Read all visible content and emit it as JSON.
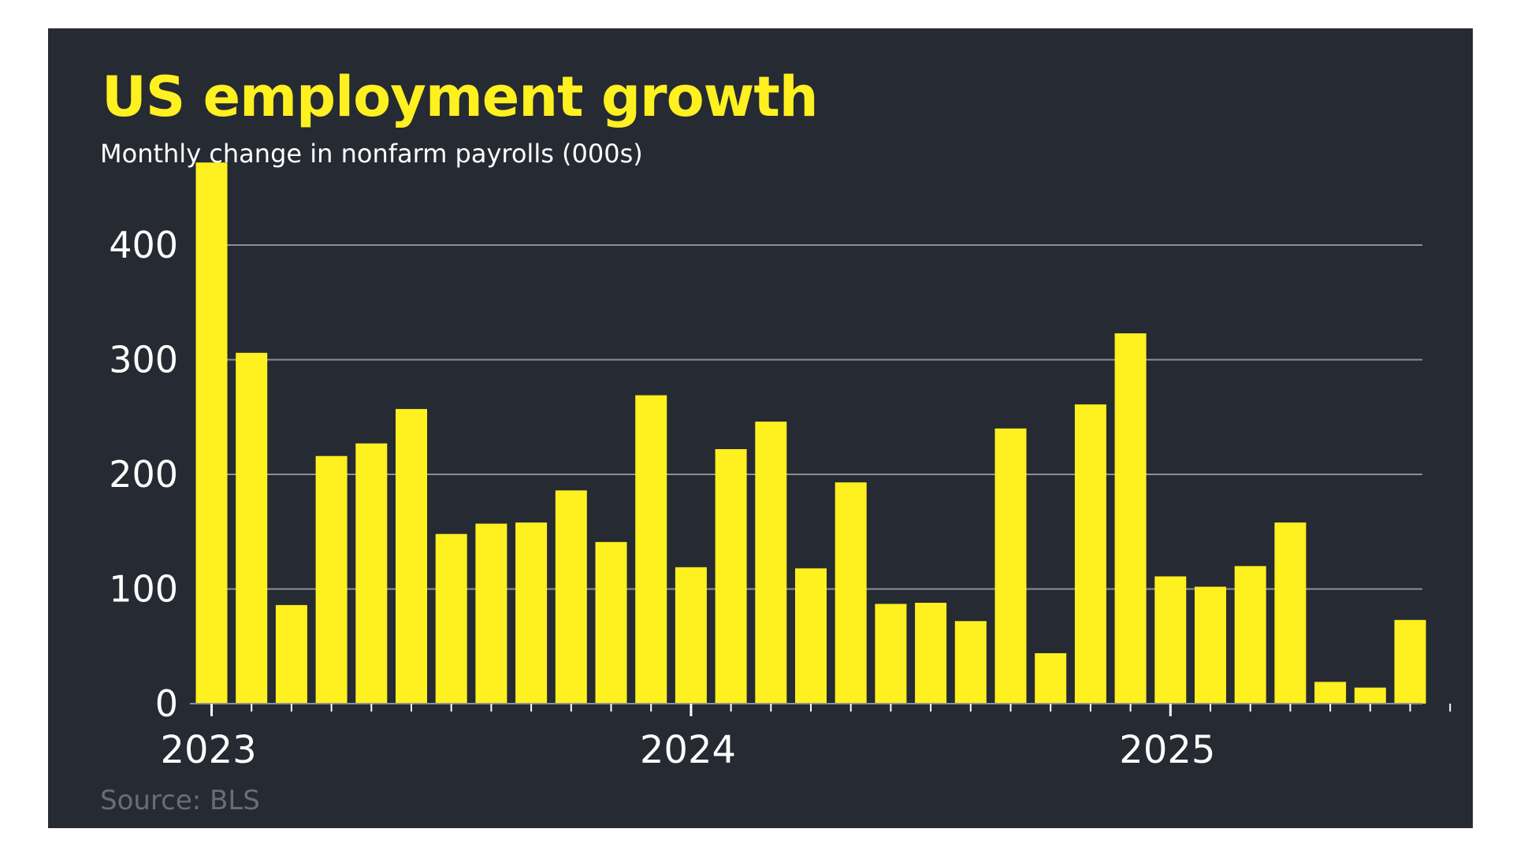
{
  "chart_data": {
    "type": "bar",
    "title": "US employment growth",
    "subtitle": "Monthly change in nonfarm payrolls (000s)",
    "source": "Source: BLS",
    "xlabel": "",
    "ylabel": "",
    "ylim": [
      0,
      440
    ],
    "yticks": [
      "0",
      "100",
      "200",
      "300",
      "400"
    ],
    "xtick_labels": [
      "2023",
      "2024",
      "2025"
    ],
    "grid": true,
    "categories": [
      "Jan 2023",
      "Feb 2023",
      "Mar 2023",
      "Apr 2023",
      "May 2023",
      "Jun 2023",
      "Jul 2023",
      "Aug 2023",
      "Sep 2023",
      "Oct 2023",
      "Nov 2023",
      "Dec 2023",
      "Jan 2024",
      "Feb 2024",
      "Mar 2024",
      "Apr 2024",
      "May 2024",
      "Jun 2024",
      "Jul 2024",
      "Aug 2024",
      "Sep 2024",
      "Oct 2024",
      "Nov 2024",
      "Dec 2024",
      "Jan 2025",
      "Feb 2025",
      "Mar 2025",
      "Apr 2025",
      "May 2025",
      "Jun 2025",
      "Jul 2025",
      "Aug 2025"
    ],
    "values": [
      472,
      306,
      86,
      216,
      227,
      257,
      148,
      157,
      158,
      186,
      141,
      269,
      119,
      222,
      246,
      118,
      193,
      87,
      88,
      72,
      240,
      44,
      261,
      323,
      111,
      102,
      120,
      158,
      19,
      14,
      73,
      null
    ],
    "colors": {
      "bar": "#fff01f",
      "background": "#262a33",
      "grid": "#8d8f94",
      "text": "#ffffff",
      "title": "#fff01f",
      "source": "#6b6d72"
    }
  }
}
